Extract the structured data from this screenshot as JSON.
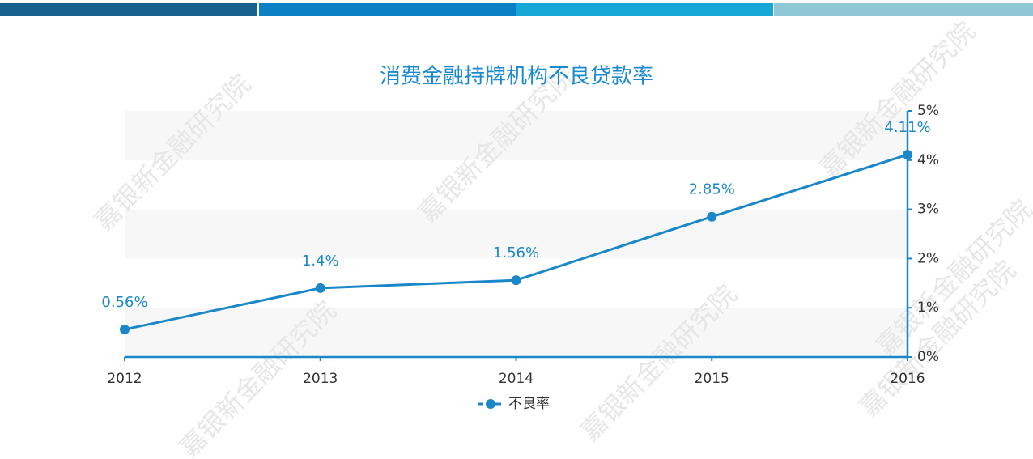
{
  "chart_data": {
    "type": "line",
    "title": "消费金融持牌机构不良贷款率",
    "categories": [
      "2012",
      "2013",
      "2014",
      "2015",
      "2016"
    ],
    "series": [
      {
        "name": "不良率",
        "color": "#1a87c8",
        "values": [
          0.56,
          1.4,
          1.56,
          2.85,
          4.11
        ],
        "value_labels": [
          "0.56%",
          "1.4%",
          "1.56%",
          "2.85%",
          "4.11%"
        ]
      }
    ],
    "ylim": [
      0,
      5
    ],
    "yticks": [
      {
        "value": 0,
        "label": "0%"
      },
      {
        "value": 1,
        "label": "1%"
      },
      {
        "value": 2,
        "label": "2%"
      },
      {
        "value": 3,
        "label": "3%"
      },
      {
        "value": 4,
        "label": "4%"
      },
      {
        "value": 5,
        "label": "5%"
      }
    ],
    "y_axis_side": "right",
    "grid": "bands",
    "legend": "bottom",
    "watermark": "嘉银新金融研究院"
  }
}
